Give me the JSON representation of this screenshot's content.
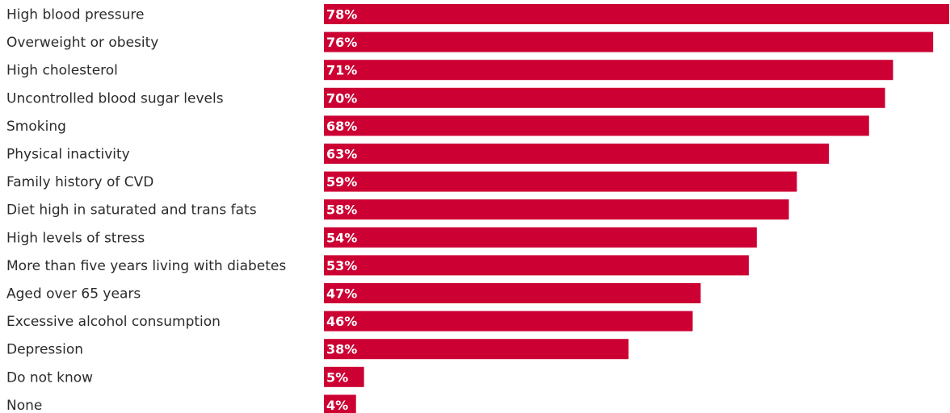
{
  "chart_data": {
    "type": "bar",
    "orientation": "horizontal",
    "categories": [
      "High blood pressure",
      "Overweight or obesity",
      "High cholesterol",
      "Uncontrolled blood sugar levels",
      "Smoking",
      "Physical inactivity",
      "Family history of CVD",
      "Diet high in saturated and trans fats",
      "High levels of stress",
      "More than five years living with diabetes",
      "Aged over 65 years",
      "Excessive alcohol consumption",
      "Depression",
      "Do not know",
      "None"
    ],
    "values": [
      78,
      76,
      71,
      70,
      68,
      63,
      59,
      58,
      54,
      53,
      47,
      46,
      38,
      5,
      4
    ],
    "value_labels": [
      "78%",
      "76%",
      "71%",
      "70%",
      "68%",
      "63%",
      "59%",
      "58%",
      "54%",
      "53%",
      "47%",
      "46%",
      "38%",
      "5%",
      "4%"
    ],
    "unit": "%",
    "title": "",
    "xlabel": "",
    "ylabel": "",
    "xlim": [
      0,
      78
    ],
    "grid": false,
    "legend": "none",
    "bar_color": "#cc0033"
  }
}
